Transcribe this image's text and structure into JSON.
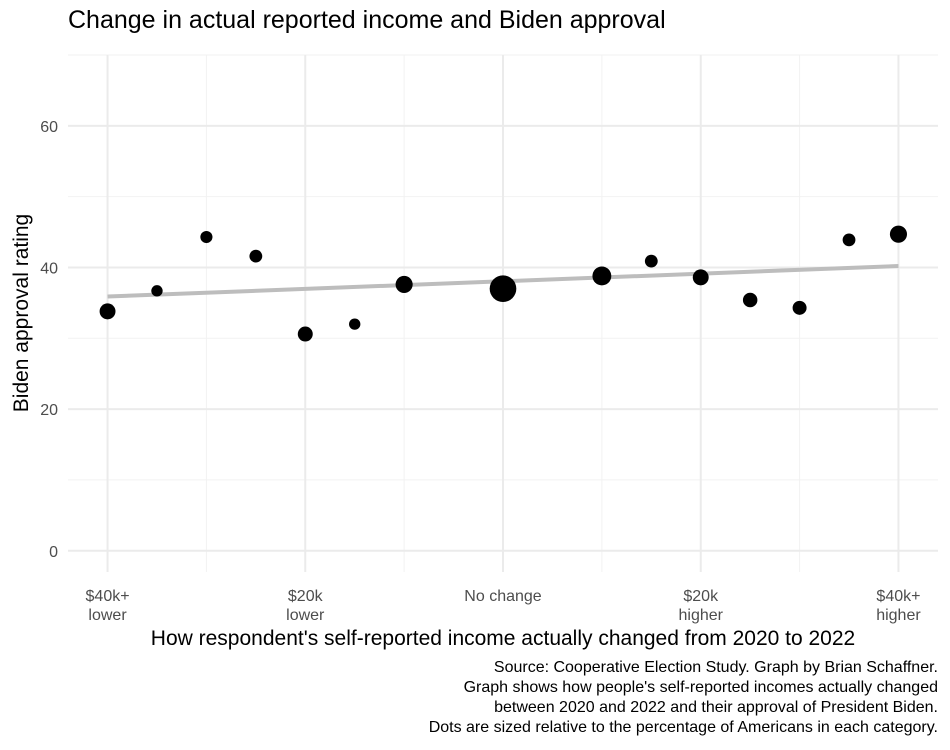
{
  "chart_data": {
    "type": "scatter",
    "title": "Change in actual reported income and Biden approval",
    "xlabel": "How respondent's self-reported income actually changed from 2020 to 2022",
    "ylabel": "Biden approval rating",
    "x_ticks": [
      {
        "x": -40,
        "label": [
          "$40k+",
          "lower"
        ]
      },
      {
        "x": -20,
        "label": [
          "$20k",
          "lower"
        ]
      },
      {
        "x": 0,
        "label": [
          "No change"
        ]
      },
      {
        "x": 20,
        "label": [
          "$20k",
          "higher"
        ]
      },
      {
        "x": 40,
        "label": [
          "$40k+",
          "higher"
        ]
      }
    ],
    "y_ticks": [
      0,
      20,
      40,
      60
    ],
    "xlim": [
      -44,
      44
    ],
    "ylim": [
      -3,
      70
    ],
    "grid": true,
    "points": [
      {
        "x": -40,
        "y": 33.8,
        "size": 2.2
      },
      {
        "x": -35,
        "y": 36.7,
        "size": 0.6
      },
      {
        "x": -30,
        "y": 44.3,
        "size": 0.8
      },
      {
        "x": -25,
        "y": 41.6,
        "size": 1.0
      },
      {
        "x": -20,
        "y": 30.6,
        "size": 1.8
      },
      {
        "x": -15,
        "y": 32.0,
        "size": 0.6
      },
      {
        "x": -10,
        "y": 37.6,
        "size": 2.8
      },
      {
        "x": 0,
        "y": 37.0,
        "size": 10.0
      },
      {
        "x": 10,
        "y": 38.8,
        "size": 3.8
      },
      {
        "x": 15,
        "y": 40.9,
        "size": 1.0
      },
      {
        "x": 20,
        "y": 38.6,
        "size": 2.2
      },
      {
        "x": 25,
        "y": 35.4,
        "size": 1.6
      },
      {
        "x": 30,
        "y": 34.3,
        "size": 1.4
      },
      {
        "x": 35,
        "y": 43.9,
        "size": 1.0
      },
      {
        "x": 40,
        "y": 44.7,
        "size": 2.8
      }
    ],
    "trend_line": {
      "x": [
        -40,
        40
      ],
      "y": [
        35.9,
        40.2
      ],
      "color": "#bdbdbd"
    },
    "point_color": "#000000",
    "caption": [
      "Source: Cooperative Election Study. Graph by Brian Schaffner.",
      "Graph shows how people's self-reported incomes actually changed",
      "between 2020 and 2022 and their approval of President Biden.",
      "Dots are sized relative to the percentage of Americans in each category."
    ]
  }
}
